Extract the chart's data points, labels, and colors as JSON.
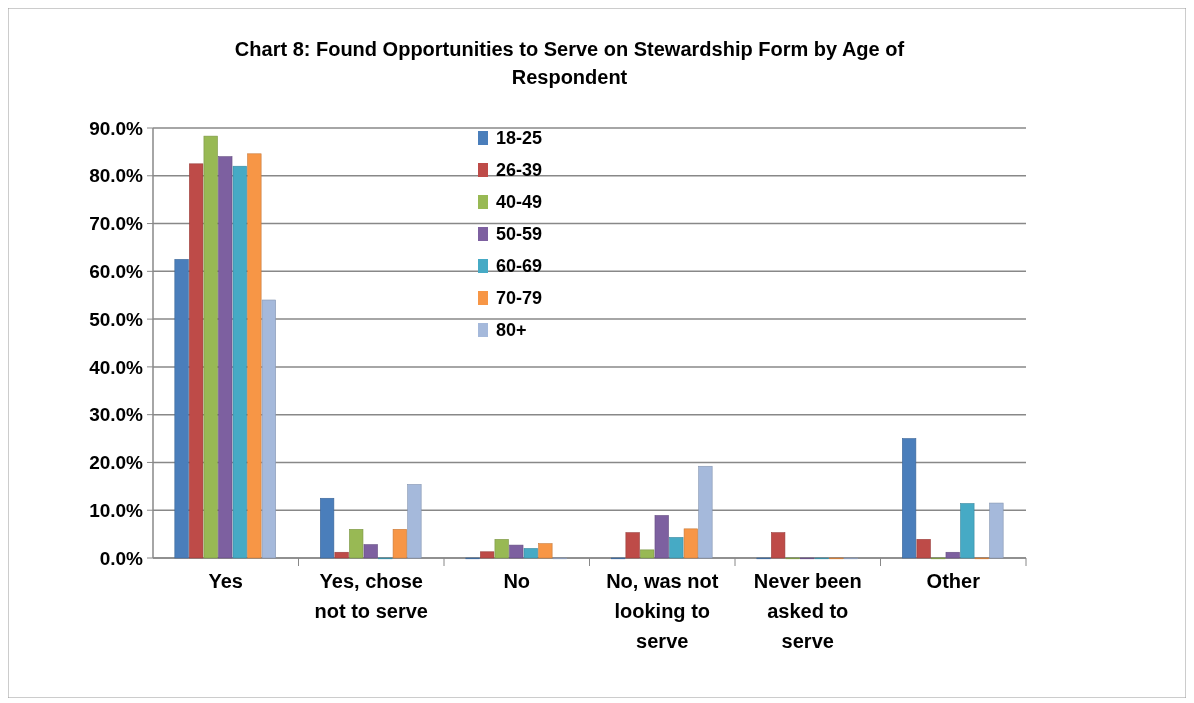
{
  "chart_data": {
    "type": "bar",
    "title": "Chart 8: Found Opportunities to Serve on Stewardship Form by Age of Respondent",
    "categories": [
      "Yes",
      "Yes, chose not to serve",
      "No",
      "No, was not looking to serve",
      "Never been asked to serve",
      "Other"
    ],
    "series": [
      {
        "name": "18-25",
        "color": "#4a7ebb",
        "values": [
          62.5,
          12.5,
          0,
          0,
          0,
          25
        ]
      },
      {
        "name": "26-39",
        "color": "#be4b48",
        "values": [
          82.5,
          1.2,
          1.3,
          5.3,
          5.3,
          3.9
        ]
      },
      {
        "name": "40-49",
        "color": "#98b954",
        "values": [
          88.3,
          6,
          3.9,
          1.7,
          0,
          0
        ]
      },
      {
        "name": "50-59",
        "color": "#7d60a0",
        "values": [
          84,
          2.8,
          2.7,
          8.9,
          0,
          1.2
        ]
      },
      {
        "name": "60-69",
        "color": "#46aac5",
        "values": [
          82,
          0,
          2,
          4.3,
          0,
          11.4
        ]
      },
      {
        "name": "70-79",
        "color": "#f79646",
        "values": [
          84.6,
          6,
          3,
          6.1,
          0,
          0
        ]
      },
      {
        "name": "80+",
        "color": "#a5b9db",
        "values": [
          54,
          15.4,
          0,
          19.2,
          0,
          11.5
        ]
      }
    ],
    "ylim": [
      0,
      90
    ],
    "yticks": [
      {
        "value": 0,
        "label": "0.0%"
      },
      {
        "value": 10,
        "label": "10.0%"
      },
      {
        "value": 20,
        "label": "20.0%"
      },
      {
        "value": 30,
        "label": "30.0%"
      },
      {
        "value": 40,
        "label": "40.0%"
      },
      {
        "value": 50,
        "label": "50.0%"
      },
      {
        "value": 60,
        "label": "60.0%"
      },
      {
        "value": 70,
        "label": "70.0%"
      },
      {
        "value": 80,
        "label": "80.0%"
      },
      {
        "value": 90,
        "label": "90.0%"
      }
    ],
    "grid": "y",
    "legend": "top"
  }
}
